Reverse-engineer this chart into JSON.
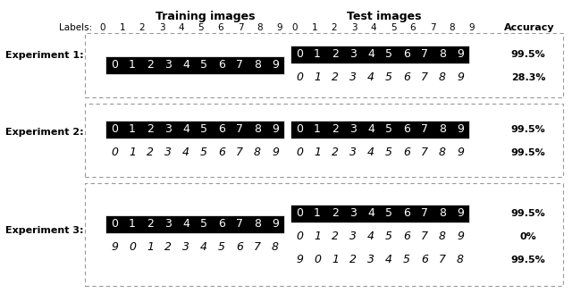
{
  "title_training": "Training images",
  "title_test": "Test images",
  "labels_text": "Labels:  0  1  2  3  4  5  6  7  8  9",
  "accuracy_header": "Accuracy",
  "background_color": "#ffffff",
  "exp_labels": [
    "Experiment 1:",
    "Experiment 2:",
    "Experiment 3:"
  ],
  "rows": [
    {
      "exp": "Experiment 1:",
      "train_rows": [
        {
          "black_bg": true,
          "text": "0 1 2 3 4 5 6 7 8 9"
        }
      ],
      "test_rows": [
        {
          "black_bg": true,
          "text": "0 1 2 3 4 5 6 7 8 9",
          "accuracy": "99.5%"
        },
        {
          "black_bg": false,
          "text": "0 1 2 3 4 5 6 7 8 9",
          "accuracy": "28.3%"
        }
      ]
    },
    {
      "exp": "Experiment 2:",
      "train_rows": [
        {
          "black_bg": true,
          "text": "0 1 2 3 4 5 6 7 8 9"
        },
        {
          "black_bg": false,
          "text": "0 1 2 3 4 5 6 7 8 9"
        }
      ],
      "test_rows": [
        {
          "black_bg": true,
          "text": "0 1 2 3 4 5 6 7 8 9",
          "accuracy": "99.5%"
        },
        {
          "black_bg": false,
          "text": "0 1 2 3 4 5 6 7 8 9",
          "accuracy": "99.5%"
        }
      ]
    },
    {
      "exp": "Experiment 3:",
      "train_rows": [
        {
          "black_bg": true,
          "text": "0 1 2 3 4 5 6 7 8 9"
        },
        {
          "black_bg": false,
          "text": "9 0 1 2 3 4 5 6 7 8"
        }
      ],
      "test_rows": [
        {
          "black_bg": true,
          "text": "0 1 2 3 4 5 6 7 8 9",
          "accuracy": "99.5%"
        },
        {
          "black_bg": false,
          "text": "0 1 2 3 4 5 6 7 8 9",
          "accuracy": "0%"
        },
        {
          "black_bg": false,
          "text": "9 0 1 2 3 4 5 6 7 8",
          "accuracy": "99.5%"
        }
      ]
    }
  ],
  "box_colors": {
    "border": "#888888",
    "bg_black": "#000000",
    "bg_white": "#ffffff",
    "text_white": "#ffffff",
    "text_black": "#000000"
  }
}
